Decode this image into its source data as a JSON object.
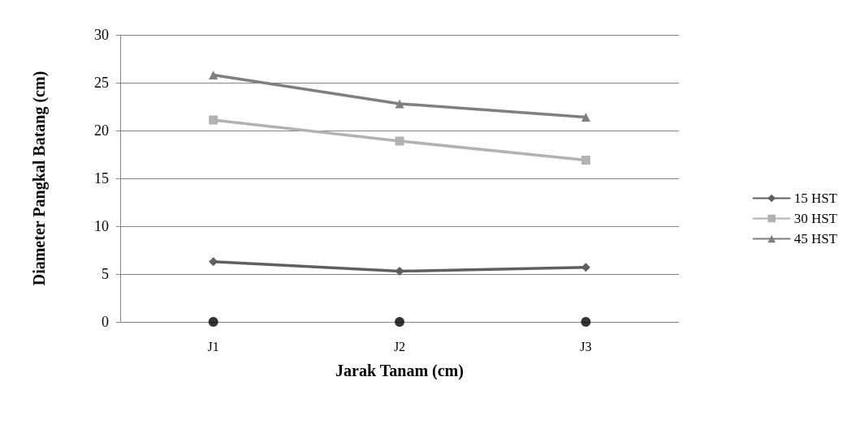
{
  "chart_data": {
    "type": "line",
    "xlabel": "Jarak Tanam (cm)",
    "ylabel": "Diameter Pangkal Batang (cm)",
    "categories": [
      "J1",
      "J2",
      "J3"
    ],
    "ylim": [
      0,
      30
    ],
    "yticks": [
      0,
      5,
      10,
      15,
      20,
      25,
      30
    ],
    "grid": "y",
    "legend": "right",
    "line_style": "solid",
    "series": [
      {
        "name": "15 HST",
        "color": "#5f5f5f",
        "marker": "diamond",
        "values": [
          6.3,
          5.3,
          5.7
        ]
      },
      {
        "name": "30 HST",
        "color": "#b2b2b2",
        "marker": "square",
        "values": [
          21.1,
          18.9,
          16.9
        ]
      },
      {
        "name": "45 HST",
        "color": "#7f7f7f",
        "marker": "triangle",
        "values": [
          25.8,
          22.8,
          21.4
        ]
      },
      {
        "type": "scatter",
        "color": "#000000",
        "marker": "circle",
        "values": [
          0,
          0,
          0
        ]
      }
    ]
  }
}
